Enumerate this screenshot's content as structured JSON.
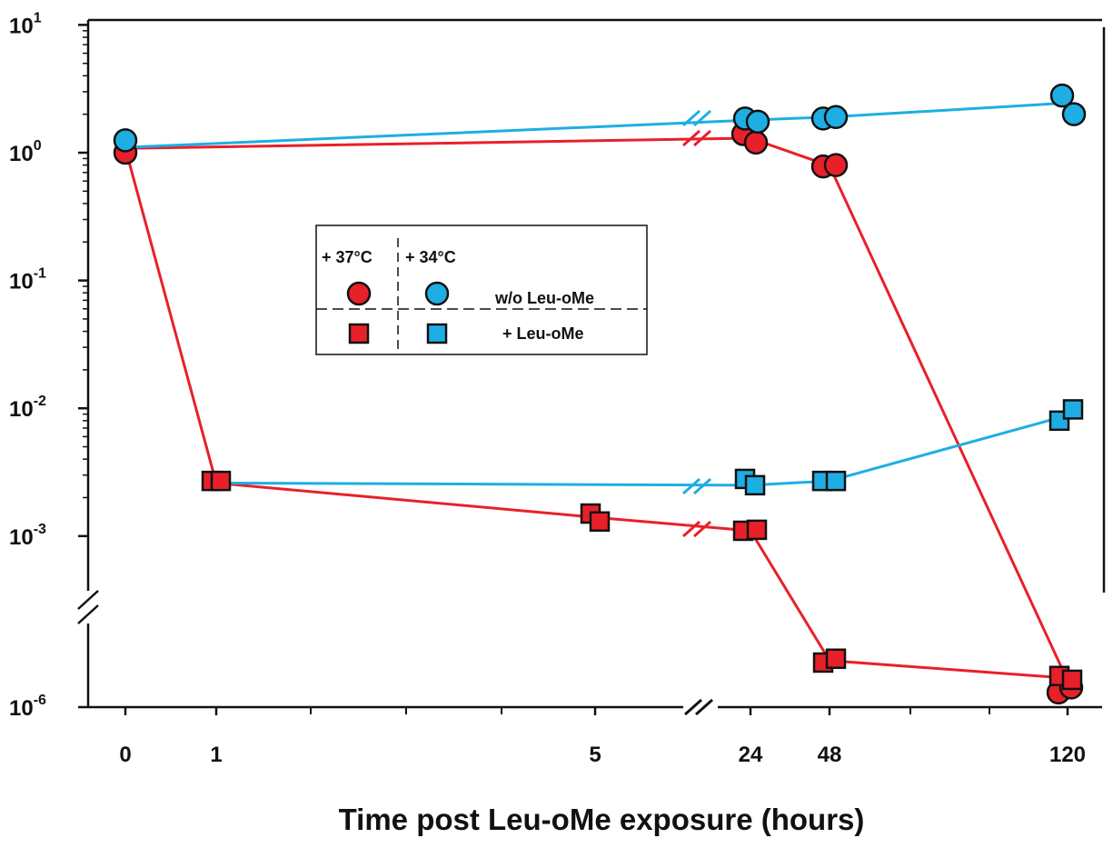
{
  "chart_data": {
    "type": "scatter",
    "title": "",
    "xlabel": "Time post Leu-oMe exposure (hours)",
    "ylabel": "",
    "y_scale": "log",
    "ylim": [
      1e-06,
      10
    ],
    "x_axis_break": "between 5 and 24",
    "y_axis_break": "between 1e-6 and 1e-3",
    "x_ticks": [
      "0",
      "1",
      "5",
      "24",
      "48",
      "120"
    ],
    "y_ticks": [
      {
        "base": "10",
        "exp": "1",
        "value": 10
      },
      {
        "base": "10",
        "exp": "0",
        "value": 1
      },
      {
        "base": "10",
        "exp": "-1",
        "value": 0.1
      },
      {
        "base": "10",
        "exp": "-2",
        "value": 0.01
      },
      {
        "base": "10",
        "exp": "-3",
        "value": 0.001
      },
      {
        "base": "10",
        "exp": "-6",
        "value": 1e-06
      }
    ],
    "legend": {
      "placement": "center-left",
      "col_headers": [
        "+ 37°C",
        "+ 34°C"
      ],
      "row_labels": [
        "w/o Leu-oMe",
        "+ Leu-oMe"
      ]
    },
    "series": [
      {
        "key": "red-circle",
        "marker": "circle",
        "color": "#e8202a",
        "points": [
          {
            "x": 0,
            "y": 1.0
          },
          {
            "x": 24,
            "y": 1.4
          },
          {
            "x": 24,
            "y": 1.2
          },
          {
            "x": 48,
            "y": 0.78
          },
          {
            "x": 48,
            "y": 0.8
          },
          {
            "x": 120,
            "y": 1.8e-06
          },
          {
            "x": 120,
            "y": 2.2e-06
          }
        ],
        "line": [
          {
            "x": 0,
            "y": 1.08
          },
          {
            "x": 24,
            "y": 1.3
          },
          {
            "x": 48,
            "y": 0.79
          },
          {
            "x": 120,
            "y": 2.9e-06
          }
        ]
      },
      {
        "key": "blue-circle",
        "marker": "circle",
        "color": "#1eaee4",
        "points": [
          {
            "x": 0,
            "y": 1.25
          },
          {
            "x": 24,
            "y": 1.85
          },
          {
            "x": 24,
            "y": 1.75
          },
          {
            "x": 48,
            "y": 1.85
          },
          {
            "x": 48,
            "y": 1.9
          },
          {
            "x": 120,
            "y": 2.8
          },
          {
            "x": 120,
            "y": 2.0
          }
        ],
        "line": [
          {
            "x": 0,
            "y": 1.1
          },
          {
            "x": 24,
            "y": 1.8
          },
          {
            "x": 48,
            "y": 1.9
          },
          {
            "x": 120,
            "y": 2.45
          }
        ]
      },
      {
        "key": "red-square",
        "marker": "square",
        "color": "#e8202a",
        "points": [
          {
            "x": 1,
            "y": 0.0027
          },
          {
            "x": 1,
            "y": 0.0027
          },
          {
            "x": 5,
            "y": 0.0015
          },
          {
            "x": 5,
            "y": 0.0013
          },
          {
            "x": 24,
            "y": 0.0011
          },
          {
            "x": 24,
            "y": 0.00112
          },
          {
            "x": 48,
            "y": 6e-06
          },
          {
            "x": 48,
            "y": 7e-06
          },
          {
            "x": 120,
            "y": 3.5e-06
          },
          {
            "x": 120,
            "y": 3e-06
          }
        ],
        "line": [
          {
            "x": 0,
            "y": 1.08
          },
          {
            "x": 1,
            "y": 0.0026
          },
          {
            "x": 5,
            "y": 0.0014
          },
          {
            "x": 24,
            "y": 0.0011
          },
          {
            "x": 48,
            "y": 6.5e-06
          },
          {
            "x": 120,
            "y": 3.2e-06
          }
        ]
      },
      {
        "key": "blue-square",
        "marker": "square",
        "color": "#1eaee4",
        "points": [
          {
            "x": 24,
            "y": 0.0028
          },
          {
            "x": 24,
            "y": 0.0025
          },
          {
            "x": 48,
            "y": 0.0027
          },
          {
            "x": 48,
            "y": 0.0027
          },
          {
            "x": 120,
            "y": 0.008
          },
          {
            "x": 120,
            "y": 0.0098
          }
        ],
        "line": [
          {
            "x": 1,
            "y": 0.0026
          },
          {
            "x": 24,
            "y": 0.0025
          },
          {
            "x": 48,
            "y": 0.0027
          },
          {
            "x": 120,
            "y": 0.0088
          }
        ]
      }
    ]
  }
}
